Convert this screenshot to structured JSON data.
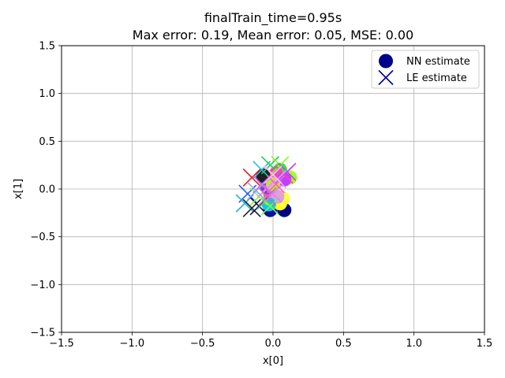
{
  "chart_data": {
    "type": "scatter",
    "title": "finalTrain_time=0.95s",
    "subtitle": "Max error: 0.19, Mean error: 0.05, MSE: 0.00",
    "xlabel": "x[0]",
    "ylabel": "x[1]",
    "xlim": [
      -1.5,
      1.5
    ],
    "ylim": [
      -1.5,
      1.5
    ],
    "xticks": [
      "−1.5",
      "−1.0",
      "−0.5",
      "0.0",
      "0.5",
      "1.0",
      "1.5"
    ],
    "yticks": [
      "−1.5",
      "−1.0",
      "−0.5",
      "0.0",
      "0.5",
      "1.0",
      "1.5"
    ],
    "grid": true,
    "legend_position": "top-right",
    "legend": [
      {
        "label": "NN estimate",
        "marker": "circle",
        "color": "#00008b"
      },
      {
        "label": "LE estimate",
        "marker": "x",
        "color": "#00008b"
      }
    ],
    "series": [
      {
        "name": "NN estimate",
        "marker": "circle",
        "points": [
          {
            "x": 0.08,
            "y": -0.22,
            "color": "#000080"
          },
          {
            "x": -0.02,
            "y": -0.22,
            "color": "#1010a0"
          },
          {
            "x": 0.05,
            "y": -0.15,
            "color": "#ffff20"
          },
          {
            "x": 0.07,
            "y": -0.1,
            "color": "#ffff40"
          },
          {
            "x": 0.12,
            "y": 0.12,
            "color": "#a0ff20"
          },
          {
            "x": 0.05,
            "y": 0.2,
            "color": "#40e040"
          },
          {
            "x": 0.02,
            "y": 0.16,
            "color": "#ff40c0"
          },
          {
            "x": 0.08,
            "y": 0.1,
            "color": "#c040ff"
          },
          {
            "x": -0.05,
            "y": 0.1,
            "color": "#ff8040"
          },
          {
            "x": -0.02,
            "y": -0.05,
            "color": "#ff60a0"
          },
          {
            "x": 0.03,
            "y": -0.08,
            "color": "#e0a0e0"
          },
          {
            "x": -0.04,
            "y": 0.02,
            "color": "#8040c0"
          },
          {
            "x": 0.0,
            "y": 0.05,
            "color": "#c0e040"
          },
          {
            "x": -0.07,
            "y": 0.14,
            "color": "#202020"
          },
          {
            "x": -0.03,
            "y": -0.16,
            "color": "#20c0e0"
          }
        ]
      },
      {
        "name": "LE estimate",
        "marker": "x",
        "points": [
          {
            "x": -0.15,
            "y": 0.12,
            "color": "#e02020"
          },
          {
            "x": -0.08,
            "y": 0.2,
            "color": "#20c0e0"
          },
          {
            "x": -0.02,
            "y": 0.25,
            "color": "#20d040"
          },
          {
            "x": 0.05,
            "y": 0.25,
            "color": "#80ff20"
          },
          {
            "x": 0.08,
            "y": 0.15,
            "color": "#ff40c0"
          },
          {
            "x": 0.1,
            "y": 0.18,
            "color": "#c040ff"
          },
          {
            "x": 0.03,
            "y": 0.1,
            "color": "#e0a0ff"
          },
          {
            "x": -0.18,
            "y": -0.05,
            "color": "#2060e0"
          },
          {
            "x": -0.2,
            "y": -0.15,
            "color": "#20b0e0"
          },
          {
            "x": -0.15,
            "y": -0.2,
            "color": "#202020"
          },
          {
            "x": -0.1,
            "y": -0.18,
            "color": "#101060"
          },
          {
            "x": -0.05,
            "y": -0.12,
            "color": "#40e040"
          },
          {
            "x": -0.02,
            "y": -0.18,
            "color": "#60ff60"
          },
          {
            "x": -0.1,
            "y": -0.08,
            "color": "#80ff40"
          },
          {
            "x": -0.05,
            "y": 0.0,
            "color": "#ff80ff"
          },
          {
            "x": 0.0,
            "y": -0.05,
            "color": "#e080e0"
          },
          {
            "x": -0.08,
            "y": 0.05,
            "color": "#c060ff"
          },
          {
            "x": 0.02,
            "y": 0.05,
            "color": "#ff60c0"
          },
          {
            "x": -0.12,
            "y": -0.02,
            "color": "#a0a0ff"
          },
          {
            "x": 0.0,
            "y": 0.15,
            "color": "#ffc0ff"
          },
          {
            "x": -0.04,
            "y": -0.08,
            "color": "#d060d0"
          }
        ]
      }
    ]
  }
}
